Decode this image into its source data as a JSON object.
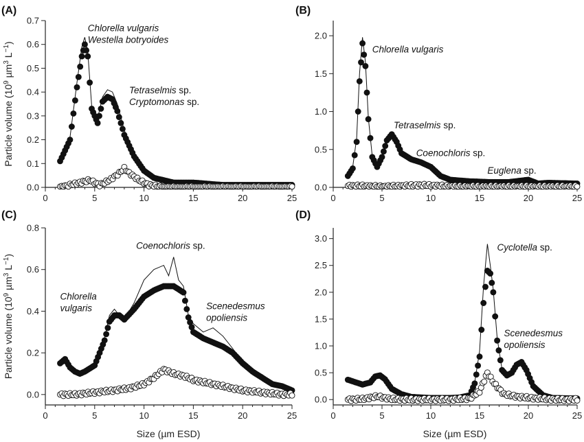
{
  "figure": {
    "xlabel": "Size (µm ESD)",
    "ylabel_prefix": "Particle volume (10",
    "ylabel_sup1": "9",
    "ylabel_mid": " µm",
    "ylabel_sup2": "3",
    "ylabel_mid2": " L",
    "ylabel_sup3": "−1",
    "ylabel_suffix": ")"
  },
  "chart_data": [
    {
      "panel": "(A)",
      "type": "scatter",
      "xlim": [
        0,
        25
      ],
      "ylim": [
        0,
        0.7
      ],
      "xticks": [
        "0",
        "5",
        "10",
        "15",
        "20",
        "25"
      ],
      "yticks": [
        "0.0",
        "0.1",
        "0.2",
        "0.3",
        "0.4",
        "0.5",
        "0.6",
        "0.7"
      ],
      "yvalues": [
        0,
        0.1,
        0.2,
        0.3,
        0.4,
        0.5,
        0.6,
        0.7
      ],
      "annotations": [
        {
          "lines": [
            [
              {
                "t": "Chlorella vulgaris",
                "i": true
              }
            ],
            [
              {
                "t": "Westella botryoides",
                "i": true
              }
            ]
          ],
          "anchor": [
            4.3,
            0.655
          ]
        },
        {
          "lines": [
            [
              {
                "t": "Tetraselmis",
                "i": true
              },
              {
                "t": " sp.",
                "i": false
              }
            ],
            [
              {
                "t": "Cryptomonas",
                "i": true
              },
              {
                "t": " sp.",
                "i": false
              }
            ]
          ],
          "anchor": [
            8.5,
            0.395
          ]
        }
      ],
      "series": [
        {
          "style": "filled",
          "x": [
            1.5,
            2.5,
            3.2,
            3.7,
            4.0,
            4.3,
            4.7,
            5.3,
            5.8,
            6.3,
            6.8,
            7.3,
            8.0,
            9.0,
            10.0,
            11.0,
            13.0,
            15.0,
            18.0,
            21.0,
            24.0,
            25.0
          ],
          "y": [
            0.11,
            0.2,
            0.42,
            0.55,
            0.6,
            0.55,
            0.33,
            0.27,
            0.36,
            0.38,
            0.37,
            0.32,
            0.22,
            0.13,
            0.07,
            0.04,
            0.02,
            0.02,
            0.01,
            0.01,
            0.01,
            0.01
          ]
        },
        {
          "style": "open",
          "x": [
            1.5,
            2.5,
            3.5,
            4.5,
            5.5,
            6.5,
            7.5,
            8.0,
            8.5,
            9.5,
            10.5,
            12.0,
            14.0,
            16.0,
            18.0,
            20.0,
            22.0,
            25.0
          ],
          "y": [
            0.0,
            0.01,
            0.02,
            0.03,
            0.01,
            0.03,
            0.06,
            0.08,
            0.06,
            0.03,
            0.01,
            0.0,
            0.0,
            0.0,
            0.0,
            0.0,
            0.0,
            0.0
          ]
        },
        {
          "style": "line",
          "x": [
            1.5,
            2.5,
            3.2,
            3.7,
            4.0,
            4.3,
            4.7,
            5.3,
            5.8,
            6.3,
            6.8,
            7.3,
            8.0,
            9.0,
            10.0,
            11.0,
            13.0,
            15.0,
            18.0,
            21.0,
            24.0,
            25.0
          ],
          "y": [
            0.12,
            0.21,
            0.44,
            0.59,
            0.63,
            0.57,
            0.34,
            0.29,
            0.38,
            0.41,
            0.4,
            0.35,
            0.24,
            0.14,
            0.07,
            0.04,
            0.02,
            0.02,
            0.01,
            0.01,
            0.01,
            0.01
          ]
        }
      ]
    },
    {
      "panel": "(B)",
      "type": "scatter",
      "xlim": [
        0,
        25
      ],
      "ylim": [
        0,
        2.2
      ],
      "xticks": [
        "0",
        "5",
        "10",
        "15",
        "20",
        "25"
      ],
      "yticks": [
        "0.0",
        "0.5",
        "1.0",
        "1.5",
        "2.0"
      ],
      "yvalues": [
        0,
        0.5,
        1.0,
        1.5,
        2.0
      ],
      "annotations": [
        {
          "lines": [
            [
              {
                "t": "Chlorella vulgaris",
                "i": true
              }
            ]
          ],
          "anchor": [
            4.0,
            1.78
          ]
        },
        {
          "lines": [
            [
              {
                "t": "Tetraselmis",
                "i": true
              },
              {
                "t": " sp.",
                "i": false
              }
            ]
          ],
          "anchor": [
            6.2,
            0.78
          ]
        },
        {
          "lines": [
            [
              {
                "t": "Coenochloris",
                "i": true
              },
              {
                "t": " sp.",
                "i": false
              }
            ]
          ],
          "anchor": [
            8.5,
            0.41
          ]
        },
        {
          "lines": [
            [
              {
                "t": "Euglena",
                "i": true
              },
              {
                "t": " sp.",
                "i": false
              }
            ]
          ],
          "anchor": [
            15.8,
            0.18
          ]
        }
      ],
      "series": [
        {
          "style": "filled",
          "x": [
            1.5,
            2.0,
            2.4,
            2.7,
            3.0,
            3.3,
            3.6,
            4.0,
            4.5,
            5.0,
            5.5,
            6.0,
            6.5,
            7.0,
            8.0,
            9.0,
            10.0,
            11.0,
            12.0,
            14.0,
            16.0,
            18.0,
            20.0,
            21.0,
            22.0,
            25.0
          ],
          "y": [
            0.15,
            0.25,
            0.6,
            1.4,
            1.9,
            1.6,
            0.9,
            0.4,
            0.27,
            0.4,
            0.62,
            0.7,
            0.6,
            0.45,
            0.37,
            0.33,
            0.27,
            0.15,
            0.1,
            0.08,
            0.07,
            0.07,
            0.1,
            0.05,
            0.06,
            0.05
          ]
        },
        {
          "style": "open",
          "x": [
            1.5,
            3.0,
            5.0,
            7.0,
            9.0,
            11.0,
            13.0,
            15.0,
            17.0,
            19.0,
            21.0,
            23.0,
            25.0
          ],
          "y": [
            0.02,
            0.02,
            0.01,
            0.02,
            0.03,
            0.02,
            0.01,
            0.01,
            0.01,
            0.01,
            0.01,
            0.01,
            0.01
          ]
        },
        {
          "style": "line",
          "x": [
            1.5,
            2.0,
            2.4,
            2.7,
            3.0,
            3.3,
            3.6,
            4.0,
            4.5,
            5.0,
            5.5,
            6.0,
            6.5,
            7.0,
            8.0,
            9.0,
            10.0,
            11.0,
            12.0,
            14.0,
            16.0,
            18.0,
            20.0,
            22.0,
            25.0
          ],
          "y": [
            0.16,
            0.27,
            0.65,
            1.5,
            1.98,
            1.65,
            0.92,
            0.41,
            0.28,
            0.42,
            0.65,
            0.73,
            0.62,
            0.46,
            0.38,
            0.34,
            0.28,
            0.16,
            0.1,
            0.08,
            0.07,
            0.07,
            0.08,
            0.06,
            0.05
          ]
        }
      ]
    },
    {
      "panel": "(C)",
      "type": "scatter",
      "xlim": [
        0,
        25
      ],
      "ylim": [
        -0.05,
        0.8
      ],
      "xticks": [
        "0",
        "5",
        "10",
        "15",
        "20",
        "25"
      ],
      "yticks": [
        "0.0",
        "0.2",
        "0.4",
        "0.6",
        "0.8"
      ],
      "yvalues": [
        0,
        0.2,
        0.4,
        0.6,
        0.8
      ],
      "annotations": [
        {
          "lines": [
            [
              {
                "t": "Coenochloris",
                "i": true
              },
              {
                "t": " sp.",
                "i": false
              }
            ]
          ],
          "anchor": [
            9.2,
            0.7
          ]
        },
        {
          "lines": [
            [
              {
                "t": "Chlorella",
                "i": true
              }
            ],
            [
              {
                "t": "vulgaris",
                "i": true
              }
            ]
          ],
          "anchor": [
            1.5,
            0.455
          ]
        },
        {
          "lines": [
            [
              {
                "t": "Scenedesmus",
                "i": true
              }
            ],
            [
              {
                "t": "opoliensis",
                "i": true
              }
            ]
          ],
          "anchor": [
            16.3,
            0.41
          ]
        }
      ],
      "series": [
        {
          "style": "filled",
          "x": [
            1.5,
            2.0,
            2.5,
            3.0,
            3.5,
            4.0,
            5.0,
            6.0,
            6.5,
            7.0,
            7.5,
            8.0,
            9.0,
            10.0,
            11.0,
            12.0,
            13.0,
            14.0,
            14.5,
            15.0,
            16.0,
            17.0,
            18.0,
            19.0,
            20.0,
            21.0,
            22.0,
            23.0,
            24.0,
            25.0
          ],
          "y": [
            0.15,
            0.17,
            0.13,
            0.11,
            0.1,
            0.11,
            0.14,
            0.26,
            0.35,
            0.38,
            0.38,
            0.36,
            0.41,
            0.47,
            0.5,
            0.52,
            0.52,
            0.49,
            0.37,
            0.3,
            0.27,
            0.25,
            0.23,
            0.2,
            0.15,
            0.11,
            0.08,
            0.05,
            0.04,
            0.02
          ]
        },
        {
          "style": "open",
          "x": [
            1.5,
            3.0,
            5.0,
            7.0,
            8.5,
            10.0,
            11.0,
            12.0,
            13.0,
            14.0,
            15.0,
            16.0,
            17.0,
            18.0,
            19.0,
            20.0,
            22.0,
            24.0,
            25.0
          ],
          "y": [
            0.0,
            0.0,
            0.01,
            0.02,
            0.03,
            0.05,
            0.08,
            0.12,
            0.1,
            0.09,
            0.07,
            0.06,
            0.05,
            0.04,
            0.03,
            0.02,
            0.01,
            0.0,
            0.0
          ]
        },
        {
          "style": "line",
          "x": [
            1.5,
            2.0,
            2.5,
            3.0,
            3.5,
            4.0,
            5.0,
            6.0,
            6.5,
            7.0,
            7.5,
            8.0,
            9.0,
            10.0,
            11.0,
            12.0,
            12.5,
            13.0,
            13.5,
            14.0,
            14.5,
            15.0,
            16.0,
            17.0,
            18.0,
            19.0,
            20.0,
            21.0,
            22.0,
            23.0,
            24.0,
            25.0
          ],
          "y": [
            0.15,
            0.18,
            0.13,
            0.11,
            0.1,
            0.11,
            0.15,
            0.27,
            0.38,
            0.41,
            0.38,
            0.36,
            0.44,
            0.55,
            0.6,
            0.62,
            0.57,
            0.66,
            0.55,
            0.52,
            0.38,
            0.34,
            0.3,
            0.32,
            0.28,
            0.22,
            0.15,
            0.11,
            0.08,
            0.05,
            0.04,
            0.02
          ]
        }
      ]
    },
    {
      "panel": "(D)",
      "type": "scatter",
      "xlim": [
        0,
        25
      ],
      "ylim": [
        -0.1,
        3.2
      ],
      "xticks": [
        "0",
        "5",
        "10",
        "15",
        "20",
        "25"
      ],
      "yticks": [
        "0.0",
        "0.5",
        "1.0",
        "1.5",
        "2.0",
        "2.5",
        "3.0"
      ],
      "yvalues": [
        0,
        0.5,
        1.0,
        1.5,
        2.0,
        2.5,
        3.0
      ],
      "annotations": [
        {
          "lines": [
            [
              {
                "t": "Cyclotella",
                "i": true
              },
              {
                "t": " sp.",
                "i": false
              }
            ]
          ],
          "anchor": [
            16.8,
            2.78
          ]
        },
        {
          "lines": [
            [
              {
                "t": "Scenedesmus",
                "i": true
              }
            ],
            [
              {
                "t": "opoliensis",
                "i": true
              }
            ]
          ],
          "anchor": [
            17.5,
            1.18
          ]
        }
      ],
      "series": [
        {
          "style": "filled",
          "x": [
            1.5,
            2.0,
            3.0,
            3.8,
            4.3,
            4.8,
            5.3,
            6.0,
            7.0,
            8.0,
            9.0,
            10.0,
            11.0,
            12.0,
            13.0,
            14.0,
            14.5,
            15.0,
            15.4,
            15.8,
            16.1,
            16.4,
            16.8,
            17.3,
            17.8,
            18.3,
            18.8,
            19.3,
            19.8,
            20.5,
            21.5,
            22.5,
            25.0
          ],
          "y": [
            0.37,
            0.34,
            0.28,
            0.32,
            0.43,
            0.45,
            0.38,
            0.2,
            0.1,
            0.05,
            0.04,
            0.03,
            0.03,
            0.03,
            0.04,
            0.08,
            0.3,
            0.8,
            1.8,
            2.4,
            2.35,
            2.0,
            1.1,
            0.55,
            0.45,
            0.5,
            0.65,
            0.7,
            0.55,
            0.25,
            0.08,
            0.03,
            0.02
          ]
        },
        {
          "style": "open",
          "x": [
            1.5,
            3.0,
            4.5,
            6.0,
            8.0,
            10.0,
            12.0,
            14.0,
            15.0,
            15.8,
            16.5,
            17.5,
            19.0,
            21.0,
            23.0,
            25.0
          ],
          "y": [
            0.0,
            0.01,
            0.06,
            0.01,
            0.0,
            0.0,
            0.0,
            0.02,
            0.15,
            0.5,
            0.3,
            0.1,
            0.05,
            0.02,
            0.0,
            0.0
          ]
        },
        {
          "style": "line",
          "x": [
            1.5,
            2.0,
            3.0,
            3.8,
            4.3,
            4.8,
            5.3,
            6.0,
            7.0,
            8.0,
            10.0,
            12.0,
            13.0,
            14.0,
            14.5,
            15.0,
            15.4,
            15.8,
            16.1,
            16.4,
            16.8,
            17.3,
            17.8,
            18.3,
            18.8,
            19.3,
            19.8,
            20.5,
            21.5,
            22.5,
            25.0
          ],
          "y": [
            0.38,
            0.35,
            0.29,
            0.33,
            0.44,
            0.47,
            0.39,
            0.21,
            0.1,
            0.05,
            0.03,
            0.03,
            0.04,
            0.09,
            0.32,
            0.9,
            2.1,
            2.9,
            2.5,
            2.05,
            1.15,
            0.56,
            0.46,
            0.52,
            0.67,
            0.73,
            0.57,
            0.26,
            0.08,
            0.03,
            0.02
          ]
        }
      ]
    }
  ]
}
